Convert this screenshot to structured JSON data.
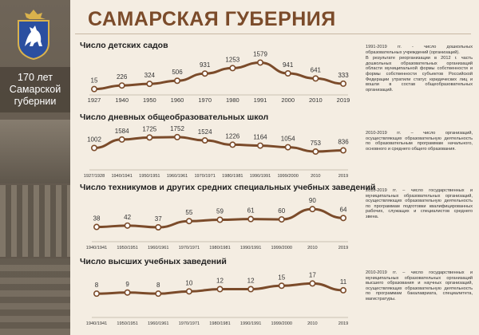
{
  "sidebar": {
    "lines": [
      "170 лет",
      "Самарской",
      "губернии"
    ]
  },
  "title": "САМАРСКАЯ ГУБЕРНИЯ",
  "line_color": "#7b4b2a",
  "chart_data": [
    {
      "type": "line",
      "title": "Число детских садов",
      "categories": [
        "1927",
        "1940",
        "1950",
        "1960",
        "1970",
        "1980",
        "1991",
        "2000",
        "2010",
        "2019"
      ],
      "values": [
        15,
        226,
        324,
        506,
        931,
        1253,
        1579,
        941,
        641,
        333
      ],
      "ylim": [
        0,
        1600
      ]
    },
    {
      "type": "line",
      "title": "Число дневных общеобразовательных школ",
      "categories": [
        "1927/1928",
        "1940/1941",
        "1950/1951",
        "1960/1961",
        "1970/1971",
        "1980/1981",
        "1990/1991",
        "1999/2000",
        "2010",
        "2019"
      ],
      "values": [
        1002,
        1584,
        1725,
        1752,
        1524,
        1226,
        1164,
        1054,
        753,
        836
      ],
      "ylim": [
        700,
        1800
      ]
    },
    {
      "type": "line",
      "title": "Число техникумов и других средних специальных учебных заведений",
      "categories": [
        "1940/1941",
        "1950/1951",
        "1960/1961",
        "1970/1971",
        "1980/1981",
        "1990/1991",
        "1999/2000",
        "2010",
        "2019"
      ],
      "values": [
        38,
        42,
        37,
        55,
        59,
        61,
        60,
        90,
        64
      ],
      "ylim": [
        30,
        95
      ]
    },
    {
      "type": "line",
      "title": "Число высших учебных заведений",
      "categories": [
        "1940/1941",
        "1950/1951",
        "1960/1961",
        "1970/1971",
        "1980/1981",
        "1990/1991",
        "1999/2000",
        "2010",
        "2019"
      ],
      "values": [
        8,
        9,
        8,
        10,
        12,
        12,
        15,
        17,
        11
      ],
      "ylim": [
        6,
        18
      ]
    }
  ],
  "notes": [
    [
      "1991-2019 гг. - число дошкольных образовательных учреждений (организаций).",
      "В результате реорганизации в 2012 г. часть дошкольных образовательных организаций области муниципальной формы собственности и формы собственности субъектов Российской Федерации утратили статус юридических лиц и вошли в состав общеобразовательных организаций."
    ],
    [
      "2010-2019 гг. – число организаций, осуществляющих образовательную деятельность по образовательным программам начального, основного и среднего общего образования."
    ],
    [
      "2010-2019 гг. – число государственных и муниципальных образовательных организаций, осуществляющих образовательную деятельность по программам подготовки квалифицированных рабочих, служащих и специалистов среднего звена."
    ],
    [
      "2010-2019 гг. – число государственных и муниципальных образовательных организаций высшего образования и научных организаций, осуществляющих образовательную деятельность по программам бакалавриата, специалитета, магистратуры."
    ]
  ]
}
